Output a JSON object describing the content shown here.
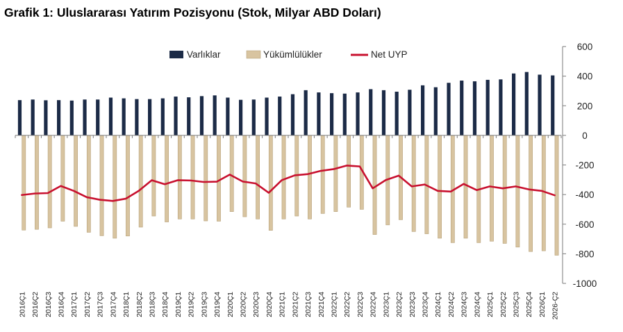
{
  "title": "Grafik 1: Uluslararası Yatırım Pozisyonu (Stok, Milyar ABD Doları)",
  "colors": {
    "assets": "#1c2b47",
    "liabilities": "#d8c4a0",
    "liabilities_edge": "#b8a37c",
    "net": "#c8102e"
  },
  "chart_data": {
    "type": "bar",
    "title": "Grafik 1: Uluslararası Yatırım Pozisyonu (Stok, Milyar ABD Doları)",
    "xlabel": "",
    "ylabel": "",
    "ylim": [
      -1000,
      600
    ],
    "yticks": [
      600,
      400,
      200,
      0,
      -200,
      -400,
      -600,
      -800,
      -1000
    ],
    "grid": false,
    "legend_position": "top-center",
    "categories": [
      "2016Ç1",
      "2016Ç2",
      "2016Ç3",
      "2016Ç4",
      "2017Ç1",
      "2017Ç2",
      "2017Ç3",
      "2017Ç4",
      "2018Ç1",
      "2018Ç2",
      "2018Ç3",
      "2018Ç4",
      "2019Ç1",
      "2019Ç2",
      "2019Ç3",
      "2019Ç4",
      "2020Ç1",
      "2020Ç2",
      "2020Ç3",
      "2020Ç4",
      "2021Ç1",
      "2021Ç2",
      "2021Ç3",
      "2021Ç4",
      "2022Ç1",
      "2022Ç2",
      "2022Ç3",
      "2022Ç4",
      "2023Ç1",
      "2023Ç2",
      "2023Ç3",
      "2023Ç4",
      "2024Ç1",
      "2024Ç2",
      "2024Ç3",
      "2024Ç4",
      "2025Ç1",
      "2025Ç2",
      "2025Ç3",
      "2025Ç4",
      "2026Ç1",
      "2026-Ç2"
    ],
    "series": [
      {
        "name": "Varlıklar",
        "type": "bar",
        "values": [
          238,
          242,
          237,
          238,
          235,
          242,
          242,
          255,
          250,
          245,
          245,
          250,
          262,
          257,
          265,
          270,
          255,
          240,
          242,
          255,
          262,
          278,
          305,
          290,
          285,
          282,
          290,
          312,
          305,
          295,
          308,
          338,
          325,
          355,
          370,
          365,
          375,
          378,
          418,
          428,
          410,
          405
        ]
      },
      {
        "name": "Yükümlülükler",
        "type": "bar",
        "values": [
          -640,
          -635,
          -625,
          -580,
          -615,
          -655,
          -678,
          -695,
          -680,
          -620,
          -545,
          -585,
          -565,
          -565,
          -578,
          -580,
          -515,
          -550,
          -565,
          -642,
          -565,
          -545,
          -565,
          -528,
          -515,
          -485,
          -500,
          -670,
          -605,
          -570,
          -650,
          -665,
          -695,
          -725,
          -695,
          -725,
          -715,
          -730,
          -755,
          -785,
          -780,
          -810
        ]
      },
      {
        "name": "Net UYP",
        "type": "line",
        "values": [
          -403,
          -393,
          -390,
          -342,
          -375,
          -418,
          -435,
          -443,
          -428,
          -375,
          -303,
          -330,
          -303,
          -305,
          -315,
          -313,
          -265,
          -312,
          -325,
          -388,
          -303,
          -270,
          -262,
          -240,
          -228,
          -204,
          -210,
          -358,
          -302,
          -272,
          -345,
          -332,
          -375,
          -380,
          -328,
          -370,
          -345,
          -358,
          -345,
          -365,
          -375,
          -405
        ]
      }
    ]
  }
}
